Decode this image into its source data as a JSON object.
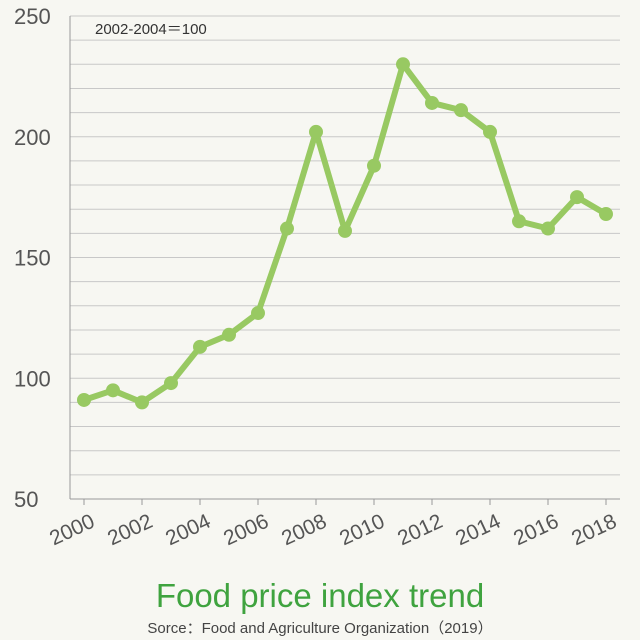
{
  "chart_data": {
    "type": "line",
    "title": "Food price index trend",
    "source": "Sorce：Food and Agriculture Organization（2019）",
    "annotation": "2002-2004＝100",
    "x": [
      2000,
      2001,
      2002,
      2003,
      2004,
      2005,
      2006,
      2007,
      2008,
      2009,
      2010,
      2011,
      2012,
      2013,
      2014,
      2015,
      2016,
      2017,
      2018
    ],
    "series": [
      {
        "values": [
          91,
          95,
          90,
          98,
          113,
          118,
          127,
          162,
          202,
          161,
          188,
          230,
          214,
          211,
          202,
          165,
          162,
          175,
          168
        ]
      }
    ],
    "xticks": [
      "2000",
      "2002",
      "2004",
      "2006",
      "2008",
      "2010",
      "2012",
      "2014",
      "2016",
      "2018"
    ],
    "yticks": [
      "50",
      "100",
      "150",
      "200",
      "250"
    ],
    "ylim": [
      50,
      250
    ],
    "xlim": [
      2000,
      2018
    ],
    "grid": true,
    "colors": {
      "line": "#98c962",
      "grid": "#c8c8c8",
      "axis": "#999999",
      "title": "#3fa33f"
    }
  }
}
